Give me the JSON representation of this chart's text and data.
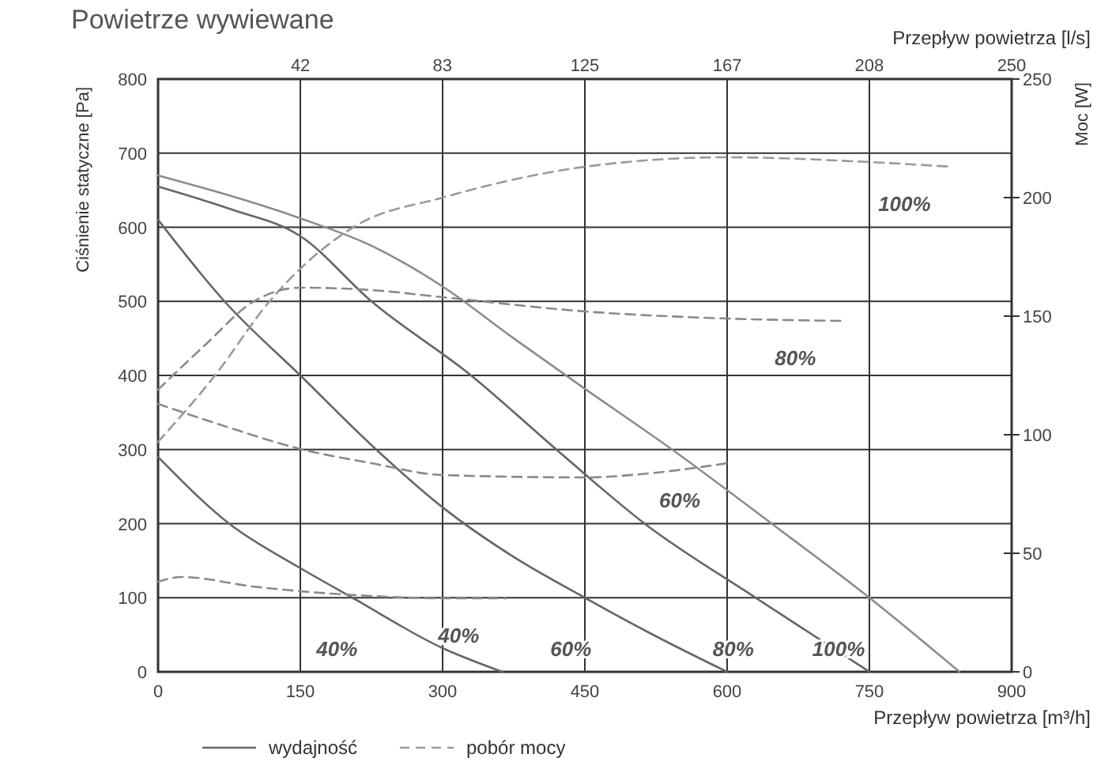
{
  "chart_data": {
    "type": "line",
    "title": "Powietrze wywiewane",
    "xlabel": "Przepływ powietrza [m³/h]",
    "x2label": "Przepływ powietrza [l/s]",
    "ylabel": "Ciśnienie statyczne [Pa]",
    "y2label": "Moc [W]",
    "xlim": [
      0,
      900
    ],
    "xticks": [
      0,
      150,
      300,
      450,
      600,
      750,
      900
    ],
    "x2lim": [
      0,
      250
    ],
    "x2ticks": [
      {
        "value": 41.7,
        "label": "42"
      },
      {
        "value": 83.3,
        "label": "83"
      },
      125,
      {
        "value": 166.7,
        "label": "167"
      },
      {
        "value": 208.3,
        "label": "208"
      },
      250
    ],
    "ylim": [
      0,
      800
    ],
    "yticks": [
      0,
      100,
      200,
      300,
      400,
      500,
      600,
      700,
      800
    ],
    "y2lim": [
      0,
      250
    ],
    "y2ticks": [
      0,
      50,
      100,
      150,
      200,
      250
    ],
    "grid": true,
    "legend": "bottom",
    "marker": "none",
    "series": [
      {
        "color": "#8c8c8c",
        "line_style": "solid",
        "x": [
          0,
          150,
          225,
          300,
          375,
          450,
          542,
          647,
          750,
          845
        ],
        "values": [
          670,
          612,
          575,
          520,
          450,
          382,
          300,
          200,
          100,
          0
        ]
      },
      {
        "name": "wydajność",
        "color": "#666666",
        "line_style": "solid",
        "x": [
          0,
          75,
          150,
          225,
          330,
          420,
          513,
          630,
          750
        ],
        "values": [
          655,
          625,
          588,
          500,
          400,
          300,
          200,
          100,
          0
        ]
      },
      {
        "color": "#666666",
        "line_style": "solid",
        "x": [
          0,
          70,
          150,
          230,
          300,
          375,
          450,
          525,
          600
        ],
        "values": [
          610,
          500,
          400,
          300,
          222,
          155,
          100,
          48,
          0
        ]
      },
      {
        "color": "#666666",
        "line_style": "solid",
        "x": [
          0,
          75,
          150,
          205,
          300,
          363
        ],
        "values": [
          290,
          200,
          140,
          100,
          32,
          0
        ]
      },
      {
        "name": "pobór mocy",
        "color": "#9a9a9a",
        "line_style": "dashed",
        "axis": "y2",
        "x": [
          0,
          60,
          117,
          208,
          300,
          450,
          600,
          750,
          837
        ],
        "values": [
          97,
          125,
          156,
          188,
          200,
          213,
          217,
          215,
          213
        ]
      },
      {
        "color": "#8a8a8a",
        "line_style": "dashed",
        "axis": "y2",
        "x": [
          0,
          50,
          100,
          150,
          225,
          300,
          450,
          600,
          722
        ],
        "values": [
          119,
          138,
          156,
          162,
          161,
          158,
          152,
          149,
          148
        ]
      },
      {
        "color": "#8a8a8a",
        "line_style": "dashed",
        "axis": "y2",
        "x": [
          0,
          75,
          150,
          225,
          300,
          450,
          525,
          600
        ],
        "values": [
          113,
          103,
          94,
          88,
          83,
          82,
          84,
          88
        ]
      },
      {
        "color": "#8a8a8a",
        "line_style": "dashed",
        "axis": "y2",
        "x": [
          0,
          25,
          100,
          150,
          225,
          300,
          367
        ],
        "values": [
          38,
          40,
          36,
          34,
          32,
          31,
          31
        ]
      }
    ],
    "annotations": [
      "100%",
      "80%",
      "60%",
      "40%",
      "100%",
      "80%",
      "60%",
      "40%"
    ]
  }
}
